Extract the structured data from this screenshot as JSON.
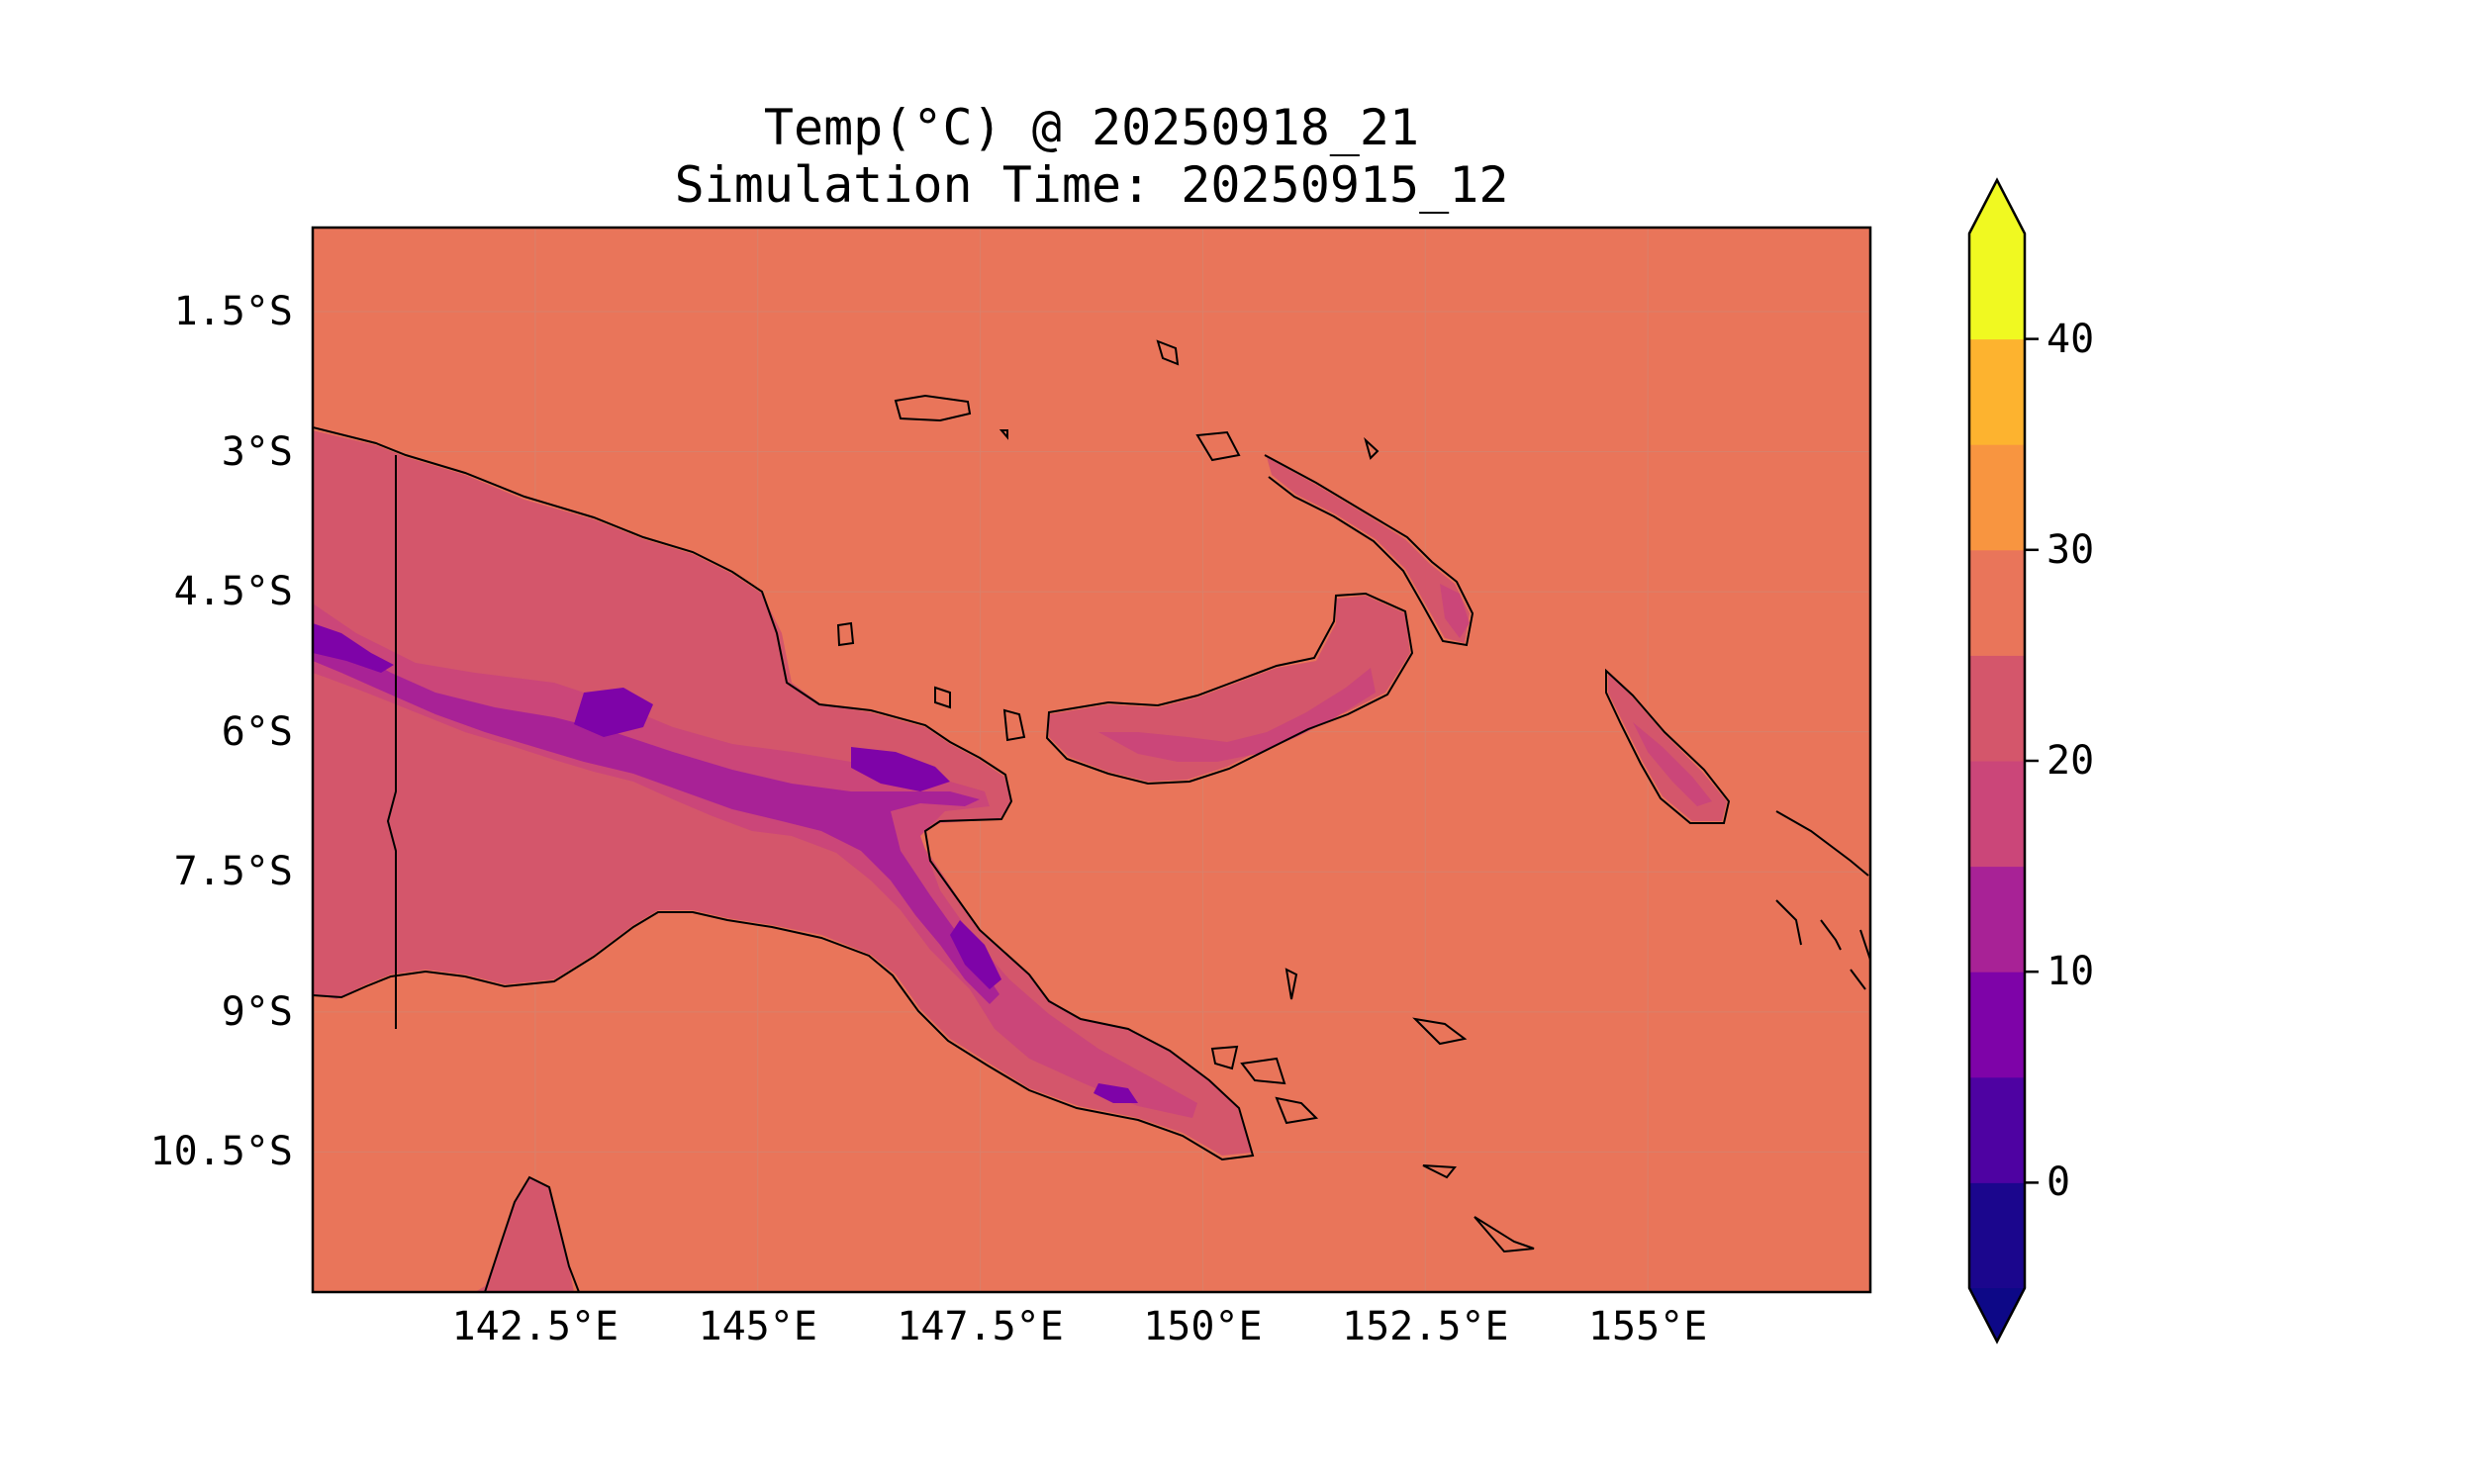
{
  "title": {
    "line1": "Temp(°C) @ 20250918_21",
    "line2": "Simulation Time: 20250915_12"
  },
  "map": {
    "lon_range": [
      140.0,
      157.5
    ],
    "lat_range": [
      -12.0,
      -0.6
    ],
    "projection": "PlateCarree",
    "gridlines": true,
    "ocean_fill": "#e9755a",
    "coastline_color": "#000000",
    "features": [
      "New Guinea",
      "New Britain",
      "New Ireland",
      "Bougainville",
      "Cape York",
      "PNG-Indonesia border"
    ]
  },
  "axes": {
    "lat_ticks": [
      "1.5°S",
      "3°S",
      "4.5°S",
      "6°S",
      "7.5°S",
      "9°S",
      "10.5°S"
    ],
    "lon_ticks": [
      "142.5°E",
      "145°E",
      "147.5°E",
      "150°E",
      "152.5°E",
      "155°E"
    ]
  },
  "colorbar": {
    "colormap": "plasma",
    "extend": "both",
    "levels": [
      -5,
      0,
      5,
      10,
      15,
      20,
      25,
      30,
      35,
      40,
      45
    ],
    "colors": [
      "#1b068d",
      "#4e02a2",
      "#7e03a8",
      "#a82296",
      "#cb4679",
      "#d4566b",
      "#e9755a",
      "#f89540",
      "#fdb32f",
      "#f0f921"
    ],
    "under_color": "#0d0887",
    "over_color": "#f0f921",
    "tick_labels": [
      "0",
      "10",
      "20",
      "30",
      "40"
    ]
  }
}
